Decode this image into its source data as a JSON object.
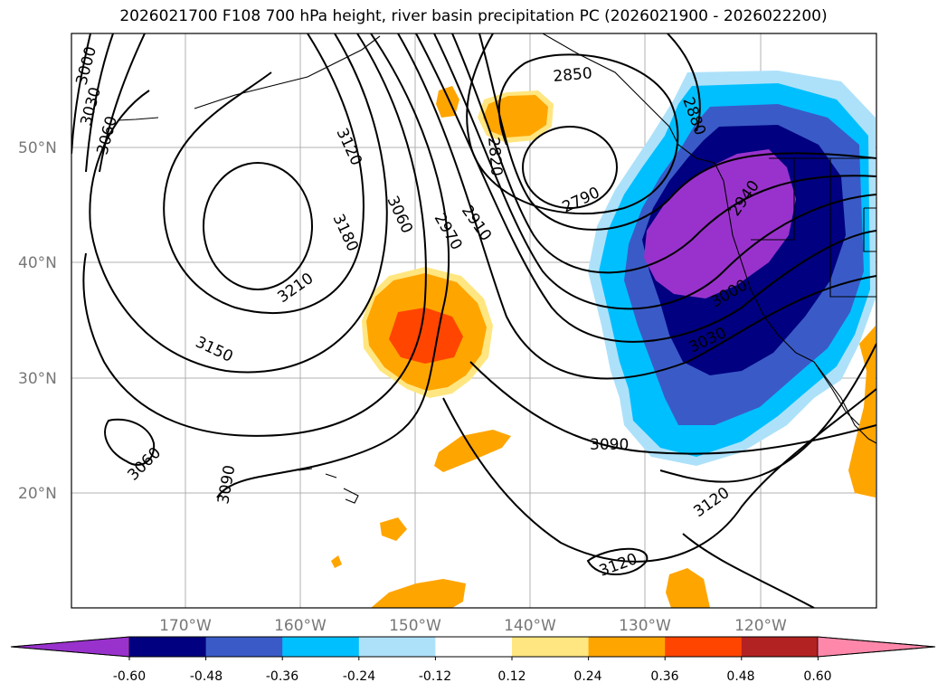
{
  "title": "2026021700 F108 700 hPa height, river basin precipitation PC (2026021900 - 2026022200)",
  "map": {
    "lat_labels": [
      "50°N",
      "40°N",
      "30°N",
      "20°N"
    ],
    "lon_labels": [
      "170°W",
      "160°W",
      "150°W",
      "140°W",
      "130°W",
      "120°W"
    ],
    "contour_labels": [
      "3000",
      "3030",
      "3060",
      "3120",
      "3180",
      "3210",
      "3150",
      "3060",
      "3090",
      "3060",
      "2970",
      "2910",
      "2850",
      "2820",
      "2790",
      "2880",
      "2940",
      "3000",
      "3030",
      "3090",
      "3120",
      "3120"
    ]
  },
  "colorbar": {
    "tick_labels": [
      "-0.60",
      "-0.48",
      "-0.36",
      "-0.24",
      "-0.12",
      "0.12",
      "0.24",
      "0.36",
      "0.48",
      "0.60"
    ],
    "colors": [
      "#9932CC",
      "#000080",
      "#3A5BC7",
      "#00BFFF",
      "#ADE1FA",
      "#FFFFFF",
      "#FFE680",
      "#FFA500",
      "#FF4500",
      "#B22222",
      "#FF88AA"
    ]
  }
}
